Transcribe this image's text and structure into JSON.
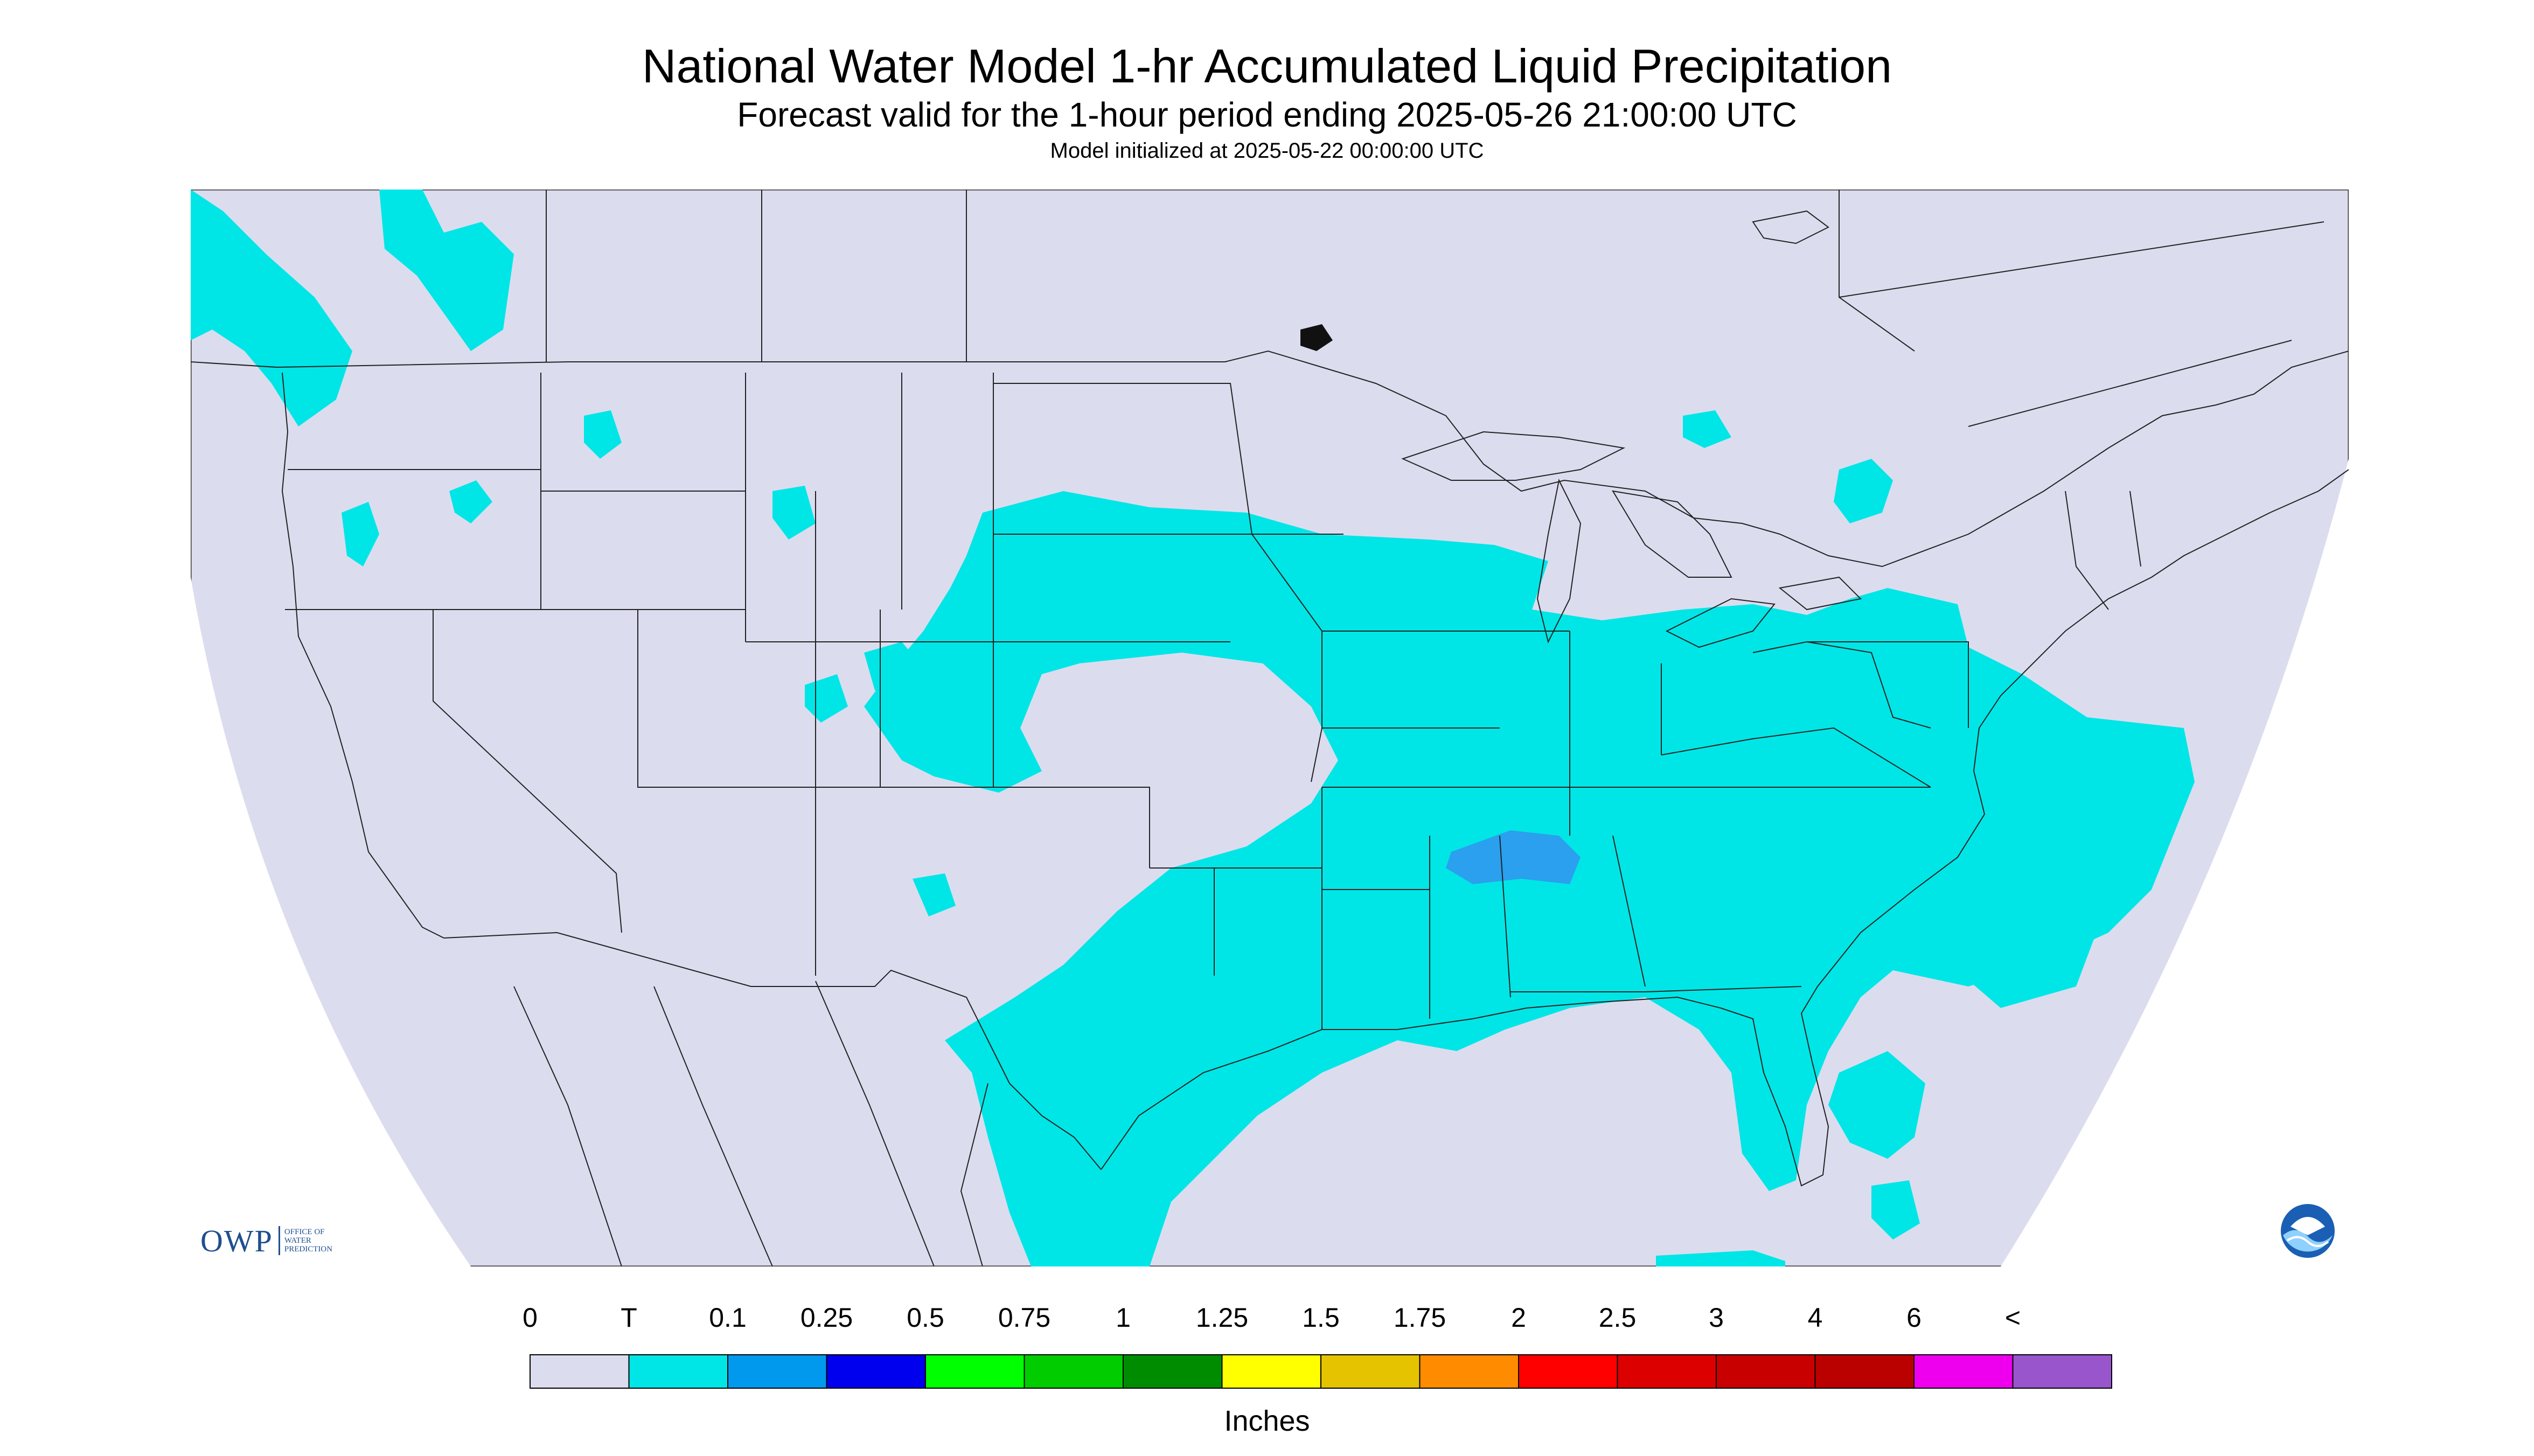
{
  "header": {
    "title": "National Water Model 1-hr Accumulated Liquid Precipitation",
    "subtitle": "Forecast valid for the 1-hour period ending 2025-05-26 21:00:00 UTC",
    "init": "Model initialized at 2025-05-22 00:00:00 UTC"
  },
  "legend": {
    "labels": [
      "0",
      "T",
      "0.1",
      "0.25",
      "0.5",
      "0.75",
      "1",
      "1.25",
      "1.5",
      "1.75",
      "2",
      "2.5",
      "3",
      "4",
      "6",
      "<"
    ],
    "colors": [
      "#dcdcef",
      "#00e6e6",
      "#0099ee",
      "#0000ee",
      "#00ff00",
      "#00cc00",
      "#008c00",
      "#ffff00",
      "#e6c300",
      "#ff8c00",
      "#ff0000",
      "#dd0000",
      "#c80000",
      "#bb0000",
      "#ee00ee",
      "#9955cc"
    ],
    "units": "Inches"
  },
  "map": {
    "background_color": "#dcdcef",
    "precip_color": "#00e6e6",
    "heavy_color": "#2aa0ee",
    "border_color": "#222222"
  },
  "logos": {
    "owp_big": "OWP",
    "owp_small": [
      "OFFICE OF",
      "WATER",
      "PREDICTION"
    ],
    "noaa_text": "NOAA"
  }
}
